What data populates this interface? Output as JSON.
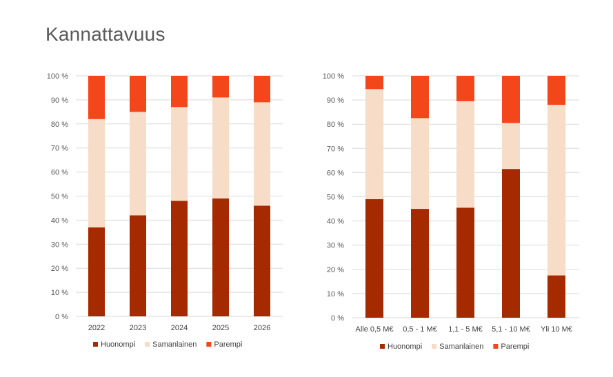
{
  "page": {
    "title": "Kannattavuus"
  },
  "colors": {
    "Huonompi": "#A52A00",
    "Samanlainen": "#F7DCC7",
    "Parempi": "#F4461B",
    "grid": "#D9D9D9"
  },
  "chart_data": [
    {
      "type": "bar",
      "stacked": "percent",
      "categories": [
        "2022",
        "2023",
        "2024",
        "2025",
        "2026"
      ],
      "series": [
        {
          "name": "Huonompi",
          "values": [
            37,
            42,
            48,
            49,
            46
          ]
        },
        {
          "name": "Samanlainen",
          "values": [
            45,
            43,
            39,
            42,
            43
          ]
        },
        {
          "name": "Parempi",
          "values": [
            18,
            15,
            13,
            9,
            11
          ]
        }
      ],
      "ylim": [
        0,
        100
      ],
      "yticks": [
        "0 %",
        "10 %",
        "20 %",
        "30 %",
        "40 %",
        "50 %",
        "60 %",
        "70 %",
        "80 %",
        "90 %",
        "100 %"
      ],
      "grid": true,
      "legend": "bottom"
    },
    {
      "type": "bar",
      "stacked": "percent",
      "categories": [
        "Alle 0,5 M€",
        "0,5 - 1 M€",
        "1,1 - 5 M€",
        "5,1 - 10 M€",
        "Yli 10 M€"
      ],
      "series": [
        {
          "name": "Huonompi",
          "values": [
            49,
            45,
            45.5,
            61.5,
            17.5
          ]
        },
        {
          "name": "Samanlainen",
          "values": [
            45.5,
            37.5,
            44,
            19,
            70.5
          ]
        },
        {
          "name": "Parempi",
          "values": [
            5.5,
            17.5,
            10.5,
            19.5,
            12
          ]
        }
      ],
      "ylim": [
        0,
        100
      ],
      "yticks": [
        "0 %",
        "10 %",
        "20 %",
        "30 %",
        "40 %",
        "50 %",
        "60 %",
        "70 %",
        "80 %",
        "90 %",
        "100 %"
      ],
      "grid": true,
      "legend": "bottom"
    }
  ]
}
